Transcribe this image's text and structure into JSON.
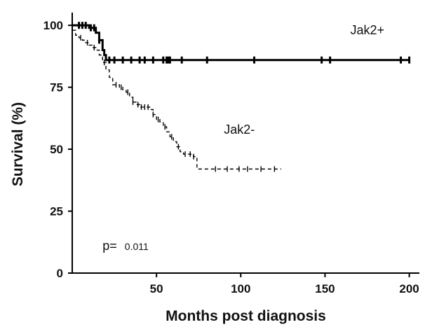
{
  "chart_data": {
    "type": "line",
    "xlabel": "Months post diagnosis",
    "ylabel": "Survival (%)",
    "xlim": [
      0,
      206
    ],
    "ylim": [
      0,
      104
    ],
    "x_ticks": [
      50,
      100,
      150,
      200
    ],
    "y_ticks": [
      0,
      25,
      50,
      75,
      100
    ],
    "grid": false,
    "step": true,
    "series": [
      {
        "name": "Jak2+",
        "line_style": "solid",
        "color": "#000000",
        "points": [
          [
            0,
            100
          ],
          [
            8,
            100
          ],
          [
            10,
            99
          ],
          [
            14,
            97
          ],
          [
            16,
            94
          ],
          [
            18,
            90
          ],
          [
            19,
            88
          ],
          [
            20,
            86
          ],
          [
            200,
            86
          ]
        ],
        "censor_x": [
          4,
          6,
          8,
          11,
          13,
          16,
          22,
          25,
          30,
          35,
          40,
          43,
          48,
          54,
          56,
          57,
          58,
          65,
          80,
          108,
          148,
          153,
          195,
          200
        ]
      },
      {
        "name": "Jak2-",
        "line_style": "dashed",
        "color": "#000000",
        "points": [
          [
            0,
            98
          ],
          [
            2,
            96
          ],
          [
            4,
            95
          ],
          [
            6,
            94
          ],
          [
            8,
            93
          ],
          [
            10,
            92
          ],
          [
            12,
            91
          ],
          [
            14,
            90
          ],
          [
            16,
            88
          ],
          [
            18,
            85
          ],
          [
            20,
            82
          ],
          [
            22,
            79
          ],
          [
            24,
            76
          ],
          [
            28,
            75
          ],
          [
            30,
            74
          ],
          [
            32,
            73
          ],
          [
            34,
            71
          ],
          [
            36,
            69
          ],
          [
            38,
            68
          ],
          [
            40,
            67
          ],
          [
            46,
            66
          ],
          [
            48,
            64
          ],
          [
            50,
            62
          ],
          [
            52,
            61
          ],
          [
            54,
            59
          ],
          [
            56,
            57
          ],
          [
            58,
            55
          ],
          [
            60,
            53
          ],
          [
            62,
            51
          ],
          [
            64,
            49
          ],
          [
            66,
            48
          ],
          [
            70,
            48
          ],
          [
            72,
            47
          ],
          [
            74,
            42
          ],
          [
            124,
            42
          ]
        ],
        "censor_x": [
          5,
          9,
          13,
          19,
          26,
          29,
          33,
          36,
          39,
          41,
          43,
          45,
          48,
          51,
          55,
          59,
          63,
          67,
          70,
          72,
          85,
          92,
          99,
          104,
          112,
          120
        ]
      }
    ],
    "annotations": [
      {
        "text": "Jak2+",
        "x": 165,
        "y": 98
      },
      {
        "text": "Jak2-",
        "x": 90,
        "y": 58
      }
    ],
    "p_value": {
      "label": "p=",
      "value": "0.011",
      "x": 18,
      "y": 11
    }
  }
}
